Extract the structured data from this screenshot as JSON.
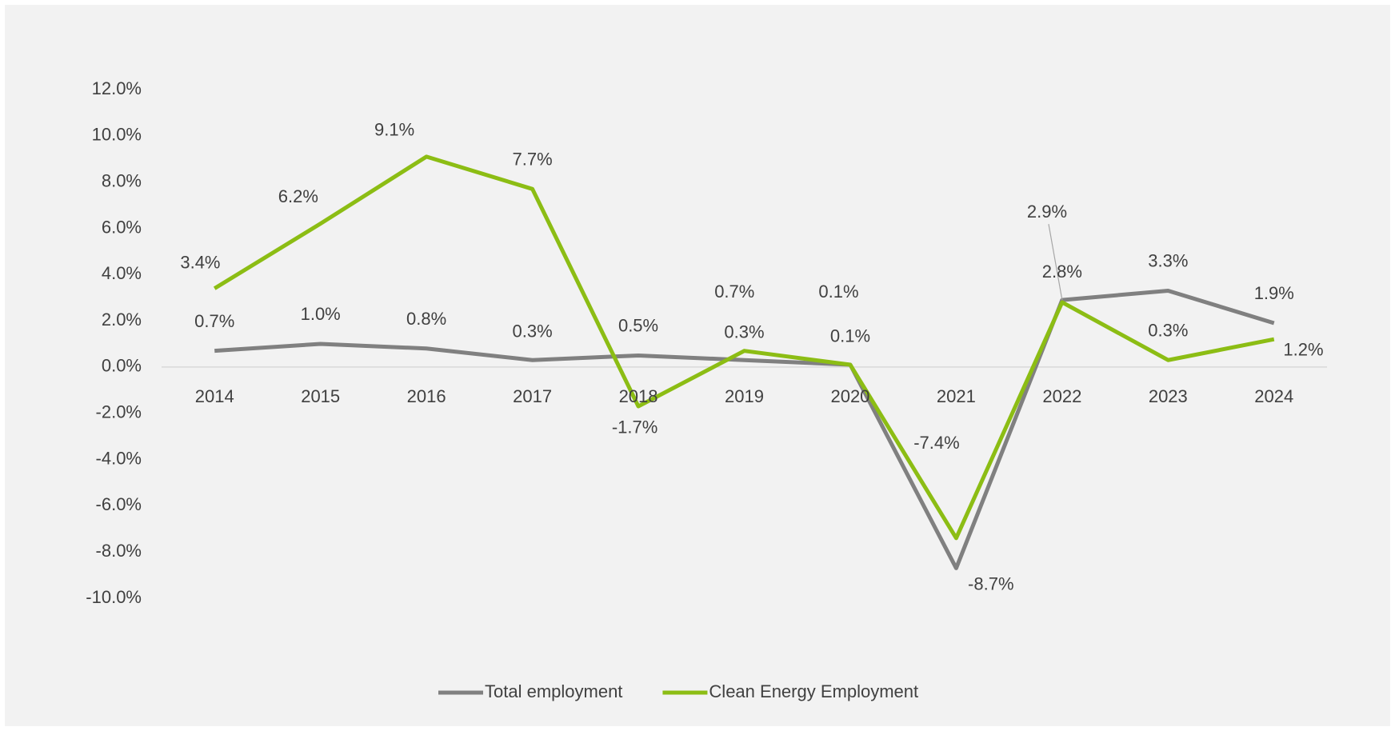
{
  "chart_data": {
    "type": "line",
    "categories": [
      "2014",
      "2015",
      "2016",
      "2017",
      "2018",
      "2019",
      "2020",
      "2021",
      "2022",
      "2023",
      "2024"
    ],
    "series": [
      {
        "name": "Total employment",
        "color": "#808080",
        "values": [
          0.7,
          1.0,
          0.8,
          0.3,
          0.5,
          0.3,
          0.1,
          -8.7,
          2.9,
          3.3,
          1.9
        ],
        "value_labels": [
          "0.7%",
          "1.0%",
          "0.8%",
          "0.3%",
          "0.5%",
          "0.3%",
          "0.1%",
          "-8.7%",
          "2.9%",
          "3.3%",
          "1.9%"
        ]
      },
      {
        "name": "Clean Energy Employment",
        "color": "#8cbd14",
        "values": [
          3.4,
          6.2,
          9.1,
          7.7,
          -1.7,
          0.7,
          0.1,
          -7.4,
          2.8,
          0.3,
          1.2
        ],
        "value_labels": [
          "3.4%",
          "6.2%",
          "9.1%",
          "7.7%",
          "-1.7%",
          "0.7%",
          "0.1%",
          "-7.4%",
          "2.8%",
          "0.3%",
          "1.2%"
        ]
      }
    ],
    "ylim": [
      -10,
      12
    ],
    "yticks": [
      {
        "value": -10,
        "label": "-10.0%"
      },
      {
        "value": -8,
        "label": "-8.0%"
      },
      {
        "value": -6,
        "label": "-6.0%"
      },
      {
        "value": -4,
        "label": "-4.0%"
      },
      {
        "value": -2,
        "label": "-2.0%"
      },
      {
        "value": 0,
        "label": "0.0%"
      },
      {
        "value": 2,
        "label": "2.0%"
      },
      {
        "value": 4,
        "label": "4.0%"
      },
      {
        "value": 6,
        "label": "6.0%"
      },
      {
        "value": 8,
        "label": "8.0%"
      },
      {
        "value": 10,
        "label": "10.0%"
      },
      {
        "value": 12,
        "label": "12.0%"
      }
    ],
    "legend": "bottom"
  }
}
